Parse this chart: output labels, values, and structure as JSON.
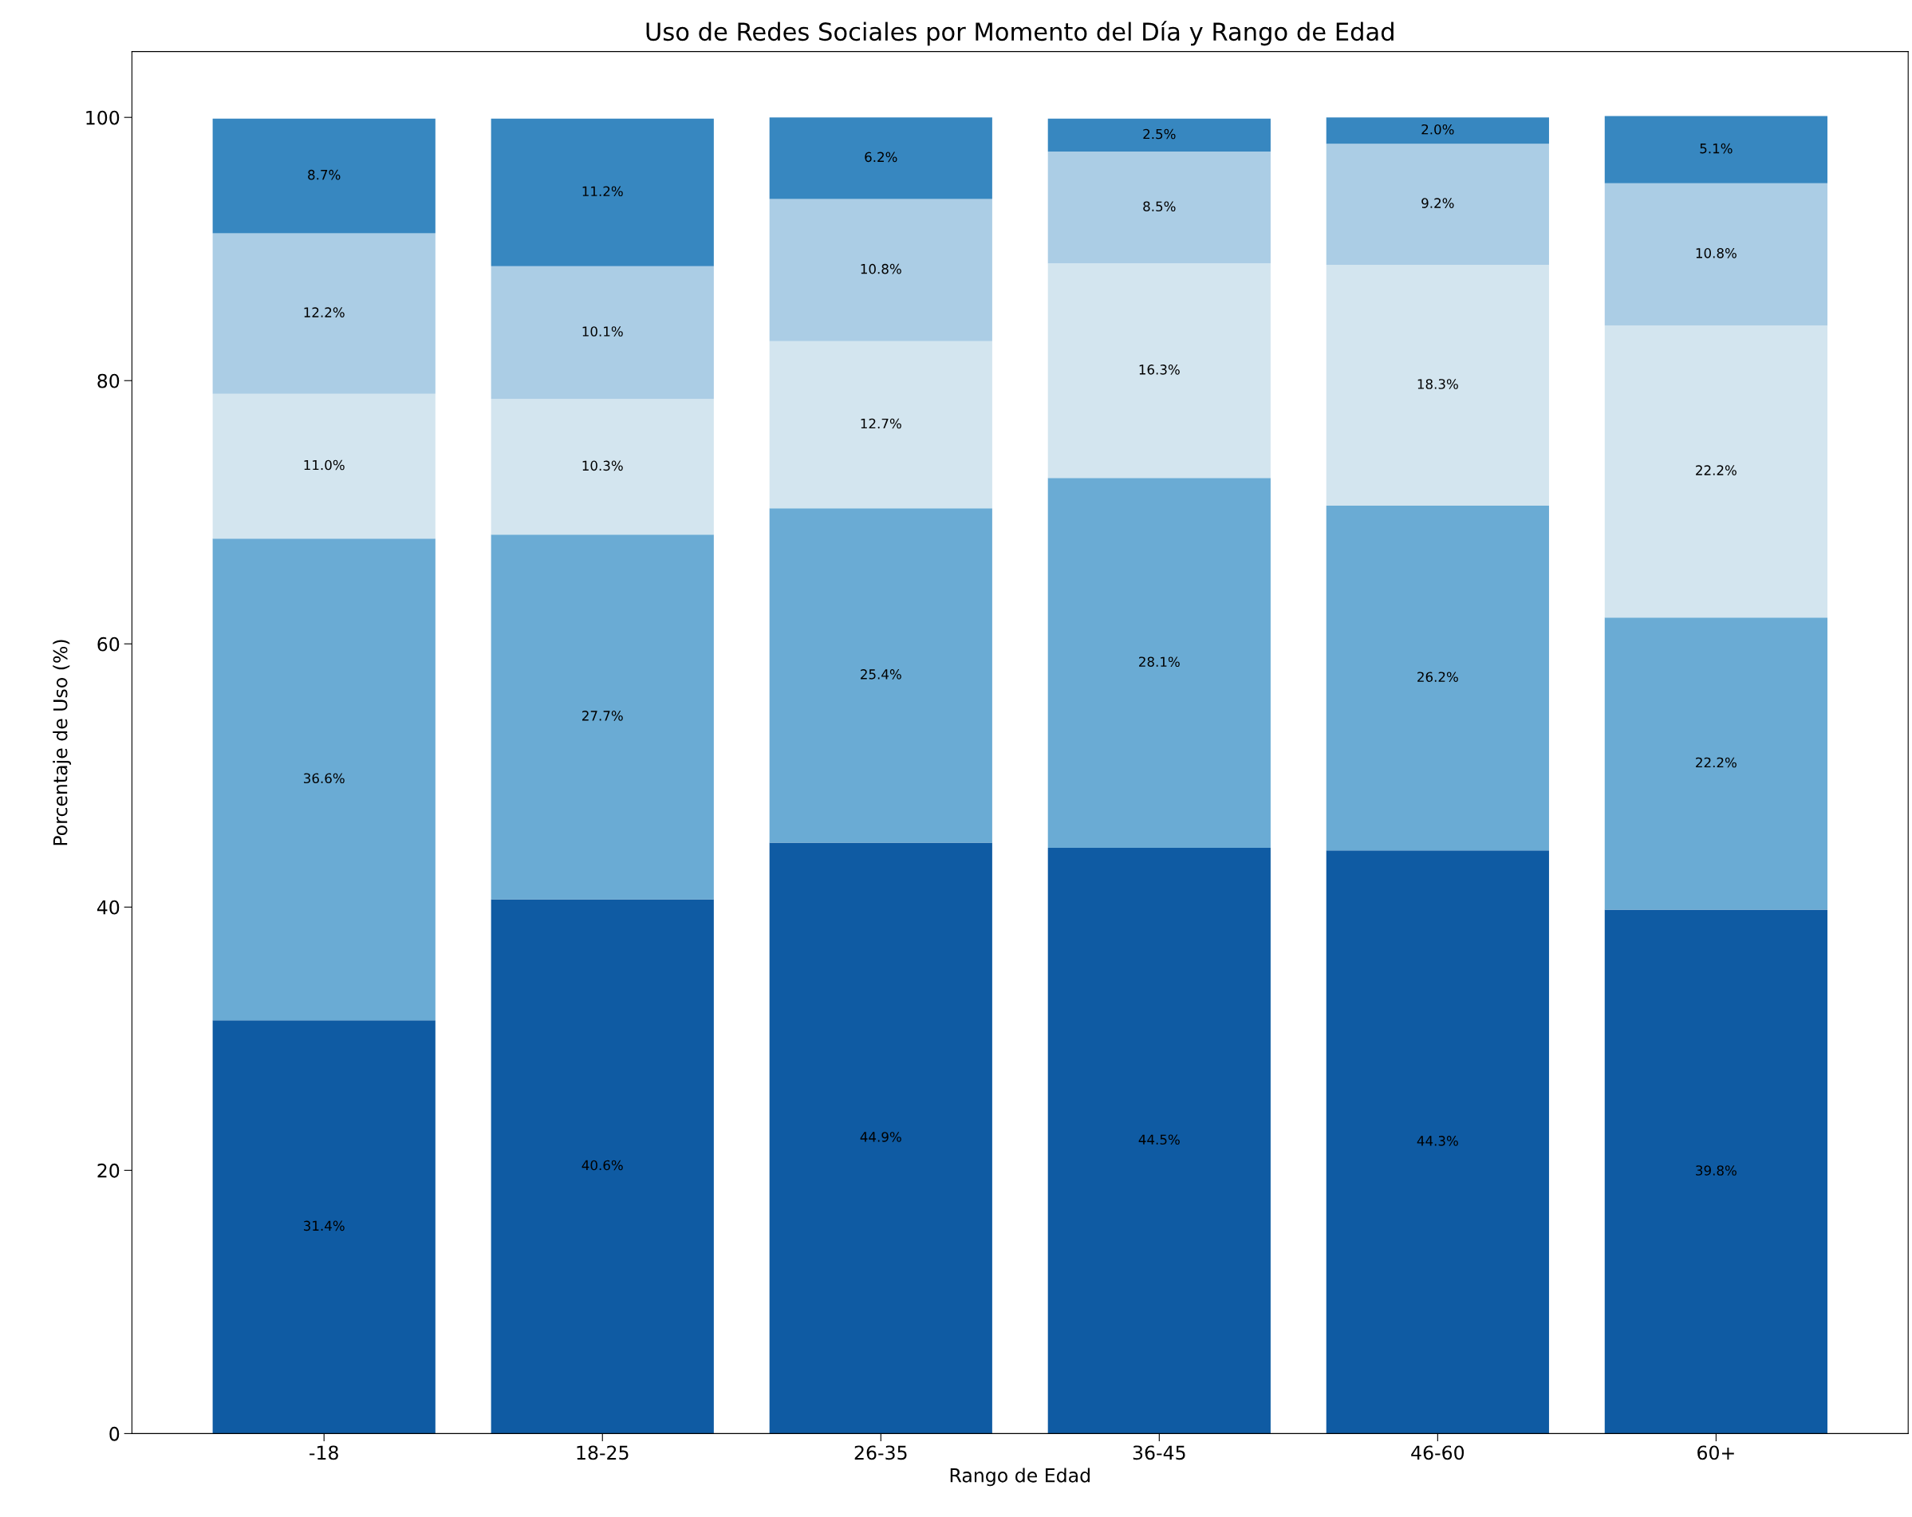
{
  "chart_data": {
    "type": "bar",
    "title": "Uso de Redes Sociales por Momento del Día y Rango de Edad",
    "xlabel": "Rango de Edad",
    "ylabel": "Porcentaje de Uso (%)",
    "categories": [
      "-18",
      "18-25",
      "26-35",
      "36-45",
      "46-60",
      "60+"
    ],
    "stacked": true,
    "ylim": [
      0,
      105
    ],
    "yticks": [
      0,
      20,
      40,
      60,
      80,
      100
    ],
    "grid": false,
    "legend": false,
    "series": [
      {
        "color": "#0f5ba3",
        "values": [
          31.4,
          40.6,
          44.9,
          44.5,
          44.3,
          39.8
        ],
        "value_labels": [
          "31.4%",
          "40.6%",
          "44.9%",
          "44.5%",
          "44.3%",
          "39.8%"
        ]
      },
      {
        "color": "#6aabd4",
        "values": [
          36.6,
          27.7,
          25.4,
          28.1,
          26.2,
          22.2
        ],
        "value_labels": [
          "36.6%",
          "27.7%",
          "25.4%",
          "28.1%",
          "26.2%",
          "22.2%"
        ]
      },
      {
        "color": "#d3e5ef",
        "values": [
          11.0,
          10.3,
          12.7,
          16.3,
          18.3,
          22.2
        ],
        "value_labels": [
          "11.0%",
          "10.3%",
          "12.7%",
          "16.3%",
          "18.3%",
          "22.2%"
        ]
      },
      {
        "color": "#abcde5",
        "values": [
          12.2,
          10.1,
          10.8,
          8.5,
          9.2,
          10.8
        ],
        "value_labels": [
          "12.2%",
          "10.1%",
          "10.8%",
          "8.5%",
          "9.2%",
          "10.8%"
        ]
      },
      {
        "color": "#3787c0",
        "values": [
          8.7,
          11.2,
          6.2,
          2.5,
          2.0,
          5.1
        ],
        "value_labels": [
          "8.7%",
          "11.2%",
          "6.2%",
          "2.5%",
          "2.0%",
          "5.1%"
        ]
      }
    ]
  }
}
